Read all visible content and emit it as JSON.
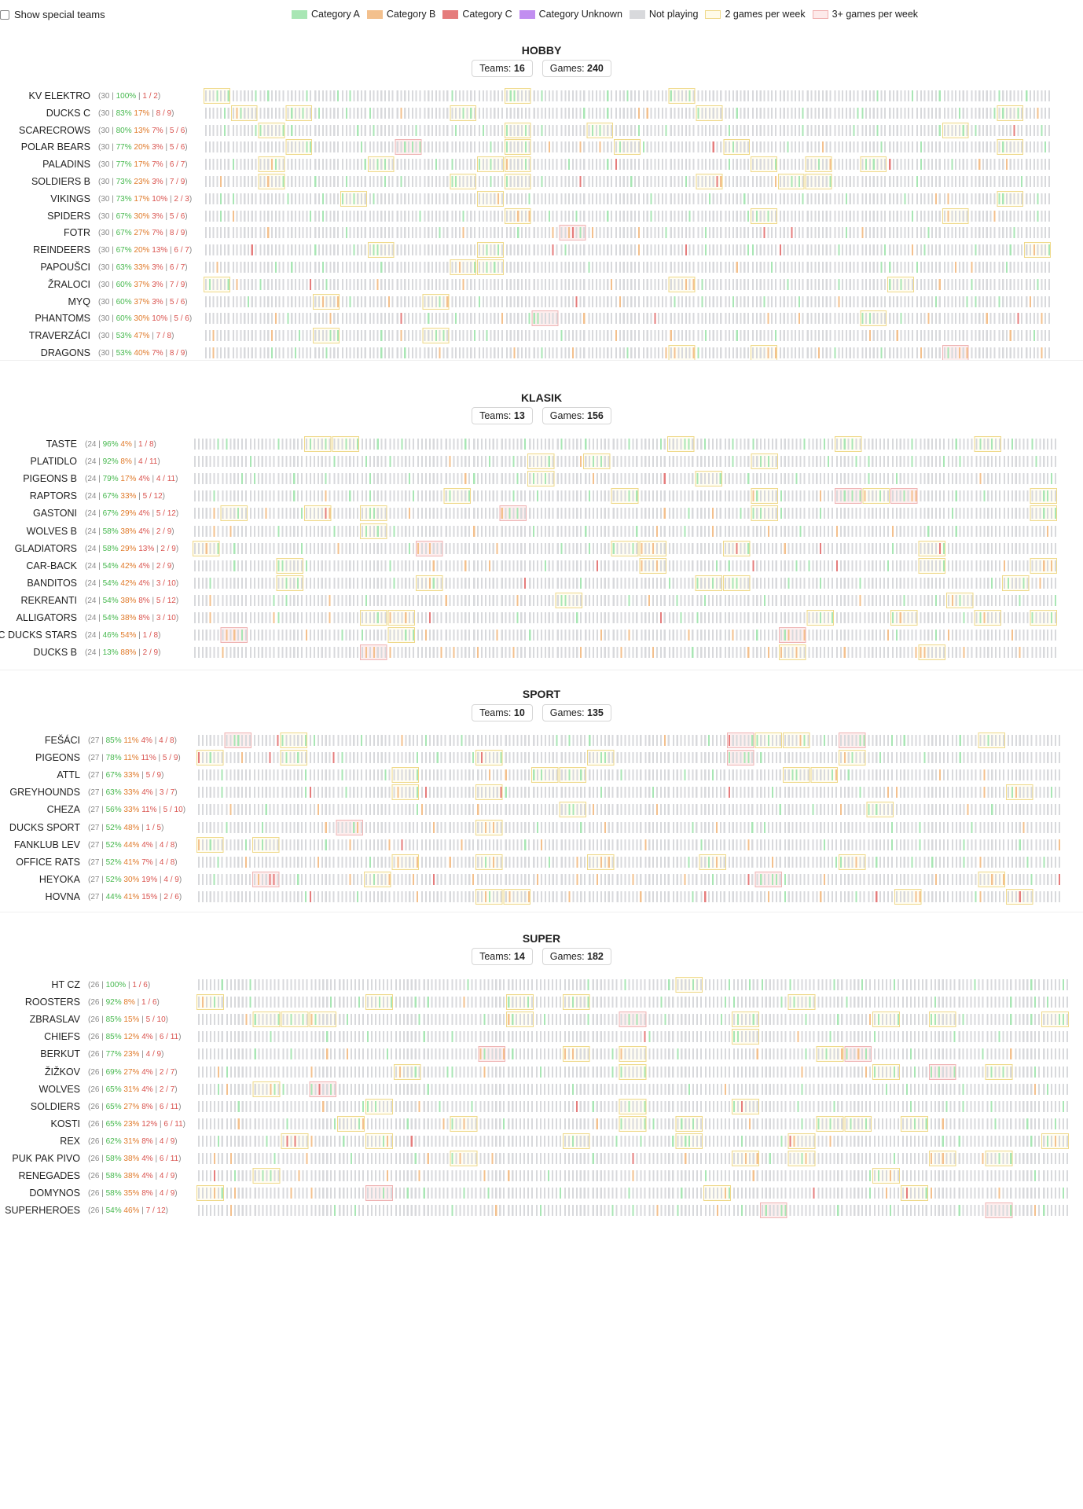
{
  "topbar": {
    "show_special_teams": "Show special teams",
    "legend": [
      {
        "label": "Category A",
        "icon": "category-a-swatch",
        "color": "#a8e6b4"
      },
      {
        "label": "Category B",
        "icon": "category-b-swatch",
        "color": "#f3c08d"
      },
      {
        "label": "Category C",
        "icon": "category-c-swatch",
        "color": "#e57c7c"
      },
      {
        "label": "Category Unknown",
        "icon": "category-unknown-swatch",
        "color": "#c18ef0"
      },
      {
        "label": "Not playing",
        "icon": "not-playing-swatch",
        "color": "#d8d9dc"
      },
      {
        "label": "2 games per week",
        "icon": "two-games-swatch",
        "color": "#f5e7a9"
      },
      {
        "label": "3+ games per week",
        "icon": "three-games-swatch",
        "color": "#f6c6c6"
      }
    ]
  },
  "sections": [
    {
      "title": "HOBBY",
      "teams_label": "Teams:",
      "teams": "16",
      "games_label": "Games:",
      "games": "240",
      "rows": [
        {
          "name": "KV ELEKTRO",
          "total": "30",
          "a": "100%",
          "b": "",
          "c": "",
          "w": "1 / 2"
        },
        {
          "name": "DUCKS C",
          "total": "30",
          "a": "83%",
          "b": "17%",
          "c": "",
          "w": "8 / 9"
        },
        {
          "name": "SCARECROWS",
          "total": "30",
          "a": "80%",
          "b": "13%",
          "c": "7%",
          "w": "5 / 6"
        },
        {
          "name": "POLAR BEARS",
          "total": "30",
          "a": "77%",
          "b": "20%",
          "c": "3%",
          "w": "5 / 6"
        },
        {
          "name": "PALADINS",
          "total": "30",
          "a": "77%",
          "b": "17%",
          "c": "7%",
          "w": "6 / 7"
        },
        {
          "name": "SOLDIERS B",
          "total": "30",
          "a": "73%",
          "b": "23%",
          "c": "3%",
          "w": "7 / 9"
        },
        {
          "name": "VIKINGS",
          "total": "30",
          "a": "73%",
          "b": "17%",
          "c": "10%",
          "w": "2 / 3"
        },
        {
          "name": "SPIDERS",
          "total": "30",
          "a": "67%",
          "b": "30%",
          "c": "3%",
          "w": "5 / 6"
        },
        {
          "name": "FOTR",
          "total": "30",
          "a": "67%",
          "b": "27%",
          "c": "7%",
          "w": "8 / 9"
        },
        {
          "name": "REINDEERS",
          "total": "30",
          "a": "67%",
          "b": "20%",
          "c": "13%",
          "w": "6 / 7"
        },
        {
          "name": "PAPOUŠCI",
          "total": "30",
          "a": "63%",
          "b": "33%",
          "c": "3%",
          "w": "6 / 7"
        },
        {
          "name": "ŽRALOCI",
          "total": "30",
          "a": "60%",
          "b": "37%",
          "c": "3%",
          "w": "7 / 9"
        },
        {
          "name": "MYQ",
          "total": "30",
          "a": "60%",
          "b": "37%",
          "c": "3%",
          "w": "5 / 6"
        },
        {
          "name": "PHANTOMS",
          "total": "30",
          "a": "60%",
          "b": "30%",
          "c": "10%",
          "w": "5 / 6"
        },
        {
          "name": "TRAVERZÁCI",
          "total": "30",
          "a": "53%",
          "b": "47%",
          "c": "",
          "w": "7 / 8"
        },
        {
          "name": "DRAGONS",
          "total": "30",
          "a": "53%",
          "b": "40%",
          "c": "7%",
          "w": "8 / 9"
        }
      ]
    },
    {
      "title": "KLASIK",
      "teams_label": "Teams:",
      "teams": "13",
      "games_label": "Games:",
      "games": "156",
      "rows": [
        {
          "name": "TASTE",
          "total": "24",
          "a": "96%",
          "b": "4%",
          "c": "",
          "w": "1 / 8"
        },
        {
          "name": "PLATIDLO",
          "total": "24",
          "a": "92%",
          "b": "8%",
          "c": "",
          "w": "4 / 11"
        },
        {
          "name": "PIGEONS B",
          "total": "24",
          "a": "79%",
          "b": "17%",
          "c": "4%",
          "w": "4 / 11"
        },
        {
          "name": "RAPTORS",
          "total": "24",
          "a": "67%",
          "b": "33%",
          "c": "",
          "w": "5 / 12"
        },
        {
          "name": "GASTONI",
          "total": "24",
          "a": "67%",
          "b": "29%",
          "c": "4%",
          "w": "5 / 12"
        },
        {
          "name": "WOLVES B",
          "total": "24",
          "a": "58%",
          "b": "38%",
          "c": "4%",
          "w": "2 / 9"
        },
        {
          "name": "GLADIATORS",
          "total": "24",
          "a": "58%",
          "b": "29%",
          "c": "13%",
          "w": "2 / 9"
        },
        {
          "name": "CAR-BACK",
          "total": "24",
          "a": "54%",
          "b": "42%",
          "c": "4%",
          "w": "2 / 9"
        },
        {
          "name": "BANDITOS",
          "total": "24",
          "a": "54%",
          "b": "42%",
          "c": "4%",
          "w": "3 / 10"
        },
        {
          "name": "REKREANTI",
          "total": "24",
          "a": "54%",
          "b": "38%",
          "c": "8%",
          "w": "5 / 12"
        },
        {
          "name": "ALLIGATORS",
          "total": "24",
          "a": "54%",
          "b": "38%",
          "c": "8%",
          "w": "3 / 10"
        },
        {
          "name": "HC DUCKS STARS",
          "total": "24",
          "a": "46%",
          "b": "54%",
          "c": "",
          "w": "1 / 8"
        },
        {
          "name": "DUCKS B",
          "total": "24",
          "a": "13%",
          "b": "88%",
          "c": "",
          "w": "2 / 9"
        }
      ]
    },
    {
      "title": "SPORT",
      "teams_label": "Teams:",
      "teams": "10",
      "games_label": "Games:",
      "games": "135",
      "rows": [
        {
          "name": "FEŠÁCI",
          "total": "27",
          "a": "85%",
          "b": "11%",
          "c": "4%",
          "w": "4 / 8"
        },
        {
          "name": "PIGEONS",
          "total": "27",
          "a": "78%",
          "b": "11%",
          "c": "11%",
          "w": "5 / 9"
        },
        {
          "name": "ATTL",
          "total": "27",
          "a": "67%",
          "b": "33%",
          "c": "",
          "w": "5 / 9"
        },
        {
          "name": "GREYHOUNDS",
          "total": "27",
          "a": "63%",
          "b": "33%",
          "c": "4%",
          "w": "3 / 7"
        },
        {
          "name": "CHEZA",
          "total": "27",
          "a": "56%",
          "b": "33%",
          "c": "11%",
          "w": "5 / 10"
        },
        {
          "name": "DUCKS SPORT",
          "total": "27",
          "a": "52%",
          "b": "48%",
          "c": "",
          "w": "1 / 5"
        },
        {
          "name": "FANKLUB LEV",
          "total": "27",
          "a": "52%",
          "b": "44%",
          "c": "4%",
          "w": "4 / 8"
        },
        {
          "name": "OFFICE RATS",
          "total": "27",
          "a": "52%",
          "b": "41%",
          "c": "7%",
          "w": "4 / 8"
        },
        {
          "name": "HEYOKA",
          "total": "27",
          "a": "52%",
          "b": "30%",
          "c": "19%",
          "w": "4 / 9"
        },
        {
          "name": "HOVNA",
          "total": "27",
          "a": "44%",
          "b": "41%",
          "c": "15%",
          "w": "2 / 6"
        }
      ]
    },
    {
      "title": "SUPER",
      "teams_label": "Teams:",
      "teams": "14",
      "games_label": "Games:",
      "games": "182",
      "rows": [
        {
          "name": "HT CZ",
          "total": "26",
          "a": "100%",
          "b": "",
          "c": "",
          "w": "1 / 6"
        },
        {
          "name": "ROOSTERS",
          "total": "26",
          "a": "92%",
          "b": "8%",
          "c": "",
          "w": "1 / 6"
        },
        {
          "name": "ZBRASLAV",
          "total": "26",
          "a": "85%",
          "b": "15%",
          "c": "",
          "w": "5 / 10"
        },
        {
          "name": "CHIEFS",
          "total": "26",
          "a": "85%",
          "b": "12%",
          "c": "4%",
          "w": "6 / 11"
        },
        {
          "name": "BERKUT",
          "total": "26",
          "a": "77%",
          "b": "23%",
          "c": "",
          "w": "4 / 9"
        },
        {
          "name": "ŽIŽKOV",
          "total": "26",
          "a": "69%",
          "b": "27%",
          "c": "4%",
          "w": "2 / 7"
        },
        {
          "name": "WOLVES",
          "total": "26",
          "a": "65%",
          "b": "31%",
          "c": "4%",
          "w": "2 / 7"
        },
        {
          "name": "SOLDIERS",
          "total": "26",
          "a": "65%",
          "b": "27%",
          "c": "8%",
          "w": "6 / 11"
        },
        {
          "name": "KOSTI",
          "total": "26",
          "a": "65%",
          "b": "23%",
          "c": "12%",
          "w": "6 / 11"
        },
        {
          "name": "REX",
          "total": "26",
          "a": "62%",
          "b": "31%",
          "c": "8%",
          "w": "4 / 9"
        },
        {
          "name": "PUK PAK PIVO",
          "total": "26",
          "a": "58%",
          "b": "38%",
          "c": "4%",
          "w": "6 / 11"
        },
        {
          "name": "RENEGADES",
          "total": "26",
          "a": "58%",
          "b": "38%",
          "c": "4%",
          "w": "4 / 9"
        },
        {
          "name": "DOMYNOS",
          "total": "26",
          "a": "58%",
          "b": "35%",
          "c": "8%",
          "w": "4 / 9"
        },
        {
          "name": "SUPERHEROES",
          "total": "26",
          "a": "54%",
          "b": "46%",
          "c": "",
          "w": "7 / 12"
        }
      ]
    }
  ],
  "colors": {
    "a": "#a8e6b4",
    "b": "#f3c08d",
    "c": "#e57c7c",
    "unknown": "#c18ef0",
    "off": "#d8d9dc",
    "two": "#f5e7a9",
    "three": "#f6c6c6"
  }
}
